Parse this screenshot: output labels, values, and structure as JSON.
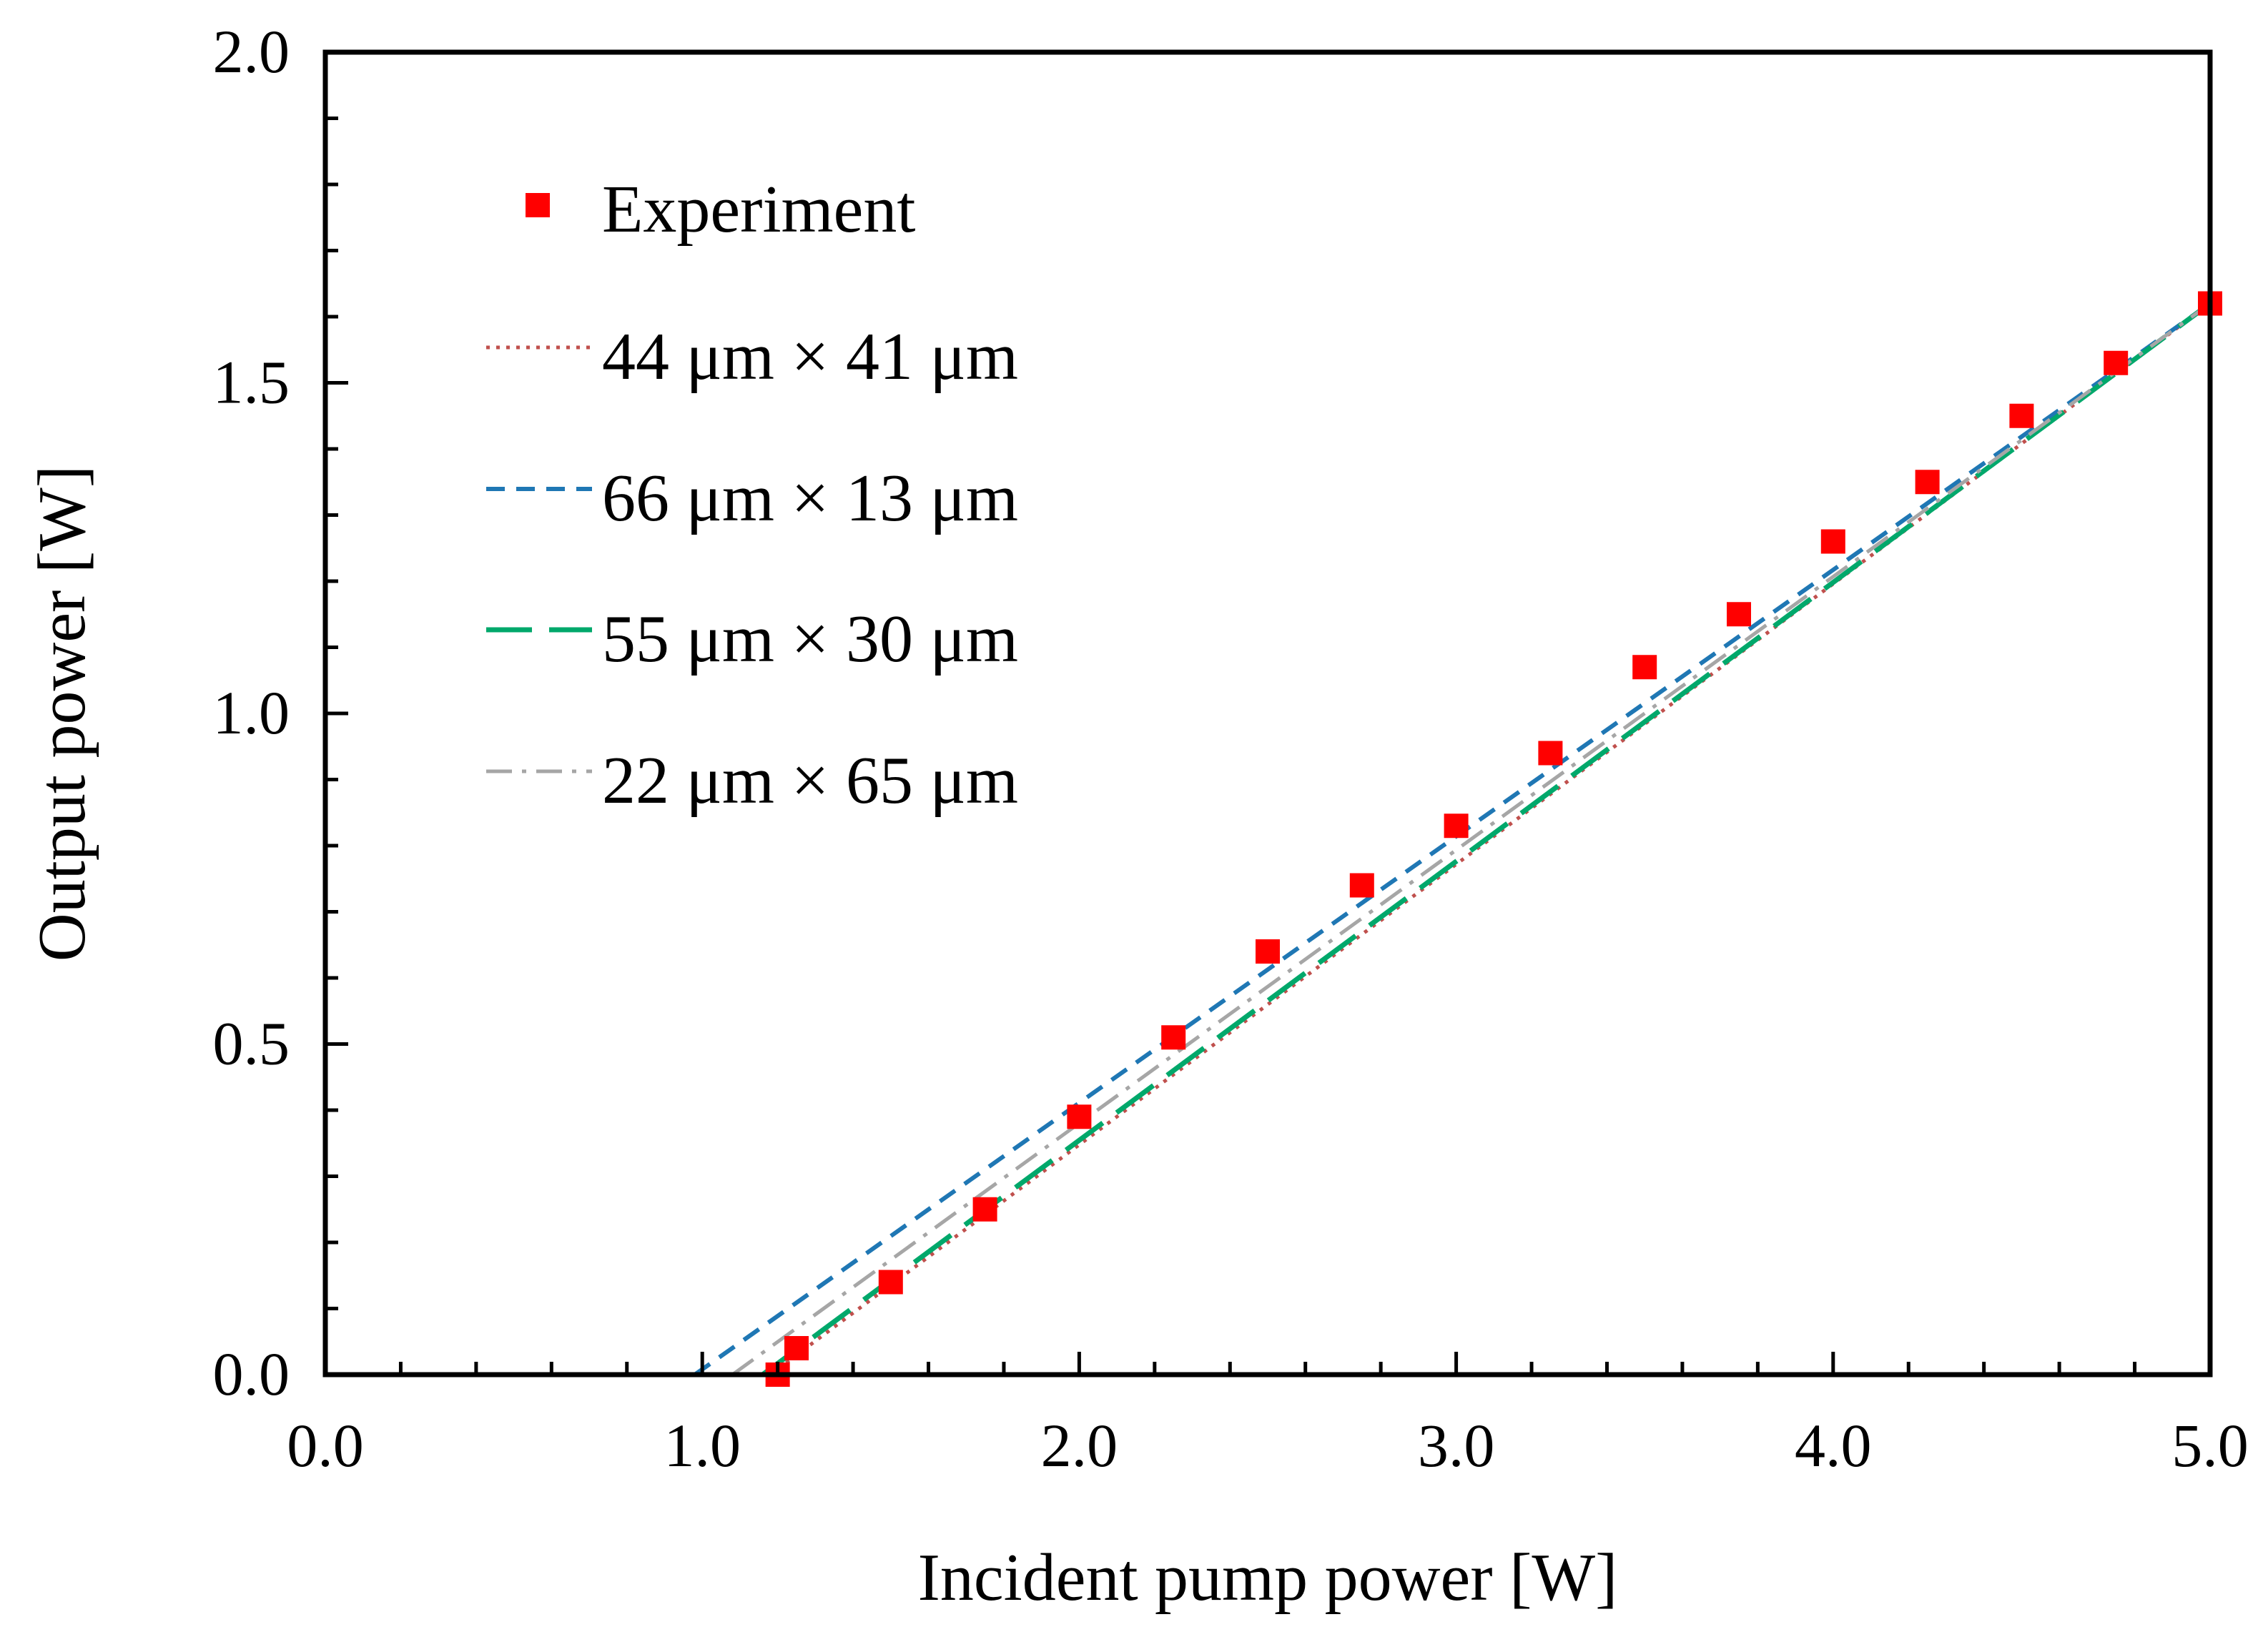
{
  "chart_data": {
    "type": "line",
    "title": "",
    "xlabel": "Incident pump power [W]",
    "ylabel": "Output power [W]",
    "xlim": [
      0.0,
      5.0
    ],
    "ylim": [
      0.0,
      2.0
    ],
    "xticks": [
      "0.0",
      "1.0",
      "2.0",
      "3.0",
      "4.0",
      "5.0"
    ],
    "yticks": [
      "0.0",
      "0.5",
      "1.0",
      "1.5",
      "2.0"
    ],
    "x_minor_step": 0.2,
    "y_minor_step": 0.1,
    "grid": false,
    "legend_position": "top-left",
    "series": [
      {
        "name": "Experiment",
        "kind": "scatter",
        "marker": "square",
        "color": "#ff0000",
        "x": [
          1.2,
          1.25,
          1.5,
          1.75,
          2.0,
          2.25,
          2.5,
          2.75,
          3.0,
          3.25,
          3.5,
          3.75,
          4.0,
          4.25,
          4.5,
          4.75,
          5.0
        ],
        "y": [
          0.0,
          0.04,
          0.14,
          0.25,
          0.39,
          0.51,
          0.64,
          0.74,
          0.83,
          0.94,
          1.07,
          1.15,
          1.26,
          1.35,
          1.45,
          1.53,
          1.62
        ]
      },
      {
        "name": "44 μm × 41 μm",
        "kind": "line",
        "style": "dotted",
        "color": "#c0504d",
        "x": [
          1.18,
          5.0
        ],
        "y": [
          0.0,
          1.62
        ]
      },
      {
        "name": "66 μm × 13 μm",
        "kind": "line",
        "style": "dashed",
        "color": "#1f77b4",
        "x": [
          0.98,
          5.0
        ],
        "y": [
          0.0,
          1.62
        ]
      },
      {
        "name": "55 μm × 30 μm",
        "kind": "line",
        "style": "long-dash",
        "color": "#00a86b",
        "x": [
          1.16,
          5.0
        ],
        "y": [
          0.0,
          1.62
        ]
      },
      {
        "name": "22 μm × 65 μm",
        "kind": "line",
        "style": "dash-dot",
        "color": "#a6a6a6",
        "x": [
          1.08,
          5.0
        ],
        "y": [
          0.0,
          1.62
        ]
      }
    ]
  }
}
